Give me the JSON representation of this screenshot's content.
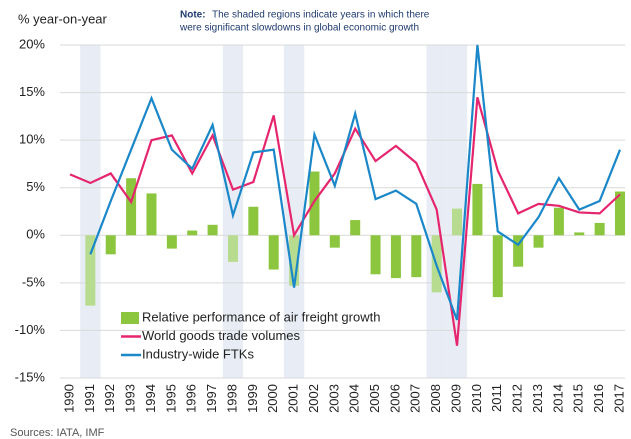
{
  "chart_data": {
    "type": "bar-line",
    "ylabel": "% year-on-year",
    "note_label": "Note:",
    "note_lines": [
      "The shaded regions indicate years in which there",
      "were significant slowdowns in global economic growth"
    ],
    "source": "Sources: IATA, IMF",
    "categories": [
      "1990",
      "1991",
      "1992",
      "1993",
      "1994",
      "1995",
      "1996",
      "1997",
      "1998",
      "1999",
      "2000",
      "2001",
      "2002",
      "2003",
      "2004",
      "2005",
      "2006",
      "2007",
      "2008",
      "2009",
      "2010",
      "2011",
      "2012",
      "2013",
      "2014",
      "2015",
      "2016",
      "2017"
    ],
    "shaded": [
      "1991",
      "1998",
      "2001",
      "2008",
      "2009"
    ],
    "shade_color": "#e8edf5",
    "series": [
      {
        "name": "Relative performance of air freight growth",
        "kind": "bar",
        "color": "#8cc63e",
        "highlight_color": "#b8dc8f",
        "values": [
          null,
          -7.4,
          -2.0,
          6.0,
          4.4,
          -1.4,
          0.5,
          1.1,
          -2.8,
          3.0,
          -3.6,
          -5.3,
          6.7,
          -1.3,
          1.6,
          -4.1,
          -4.5,
          -4.4,
          -6.0,
          2.8,
          5.4,
          -6.5,
          -3.3,
          -1.3,
          2.9,
          0.3,
          1.3,
          4.6
        ]
      },
      {
        "name": "World goods trade volumes",
        "kind": "line",
        "color": "#e5266e",
        "values": [
          6.4,
          5.5,
          6.5,
          3.5,
          10.0,
          10.5,
          6.5,
          10.5,
          4.8,
          5.6,
          12.6,
          0.0,
          3.6,
          6.5,
          11.2,
          7.8,
          9.4,
          7.6,
          2.7,
          -11.6,
          14.5,
          6.8,
          2.3,
          3.3,
          3.1,
          2.4,
          2.3,
          4.3
        ]
      },
      {
        "name": "Industry-wide FTKs",
        "kind": "line",
        "color": "#1a87c9",
        "values": [
          null,
          -2.0,
          3.6,
          9.0,
          14.4,
          9.0,
          7.0,
          11.6,
          2.1,
          8.7,
          9.0,
          -5.5,
          10.6,
          5.2,
          12.8,
          3.8,
          4.7,
          3.3,
          -3.2,
          -8.9,
          20.0,
          0.4,
          -1.0,
          1.9,
          6.0,
          2.7,
          3.6,
          9.0
        ]
      }
    ],
    "ylim": [
      -15,
      20
    ],
    "yticks": [
      {
        "value": -15,
        "label": "-15%"
      },
      {
        "value": -10,
        "label": "-10%"
      },
      {
        "value": -5,
        "label": "-5%"
      },
      {
        "value": 0,
        "label": "0%"
      },
      {
        "value": 5,
        "label": "5%"
      },
      {
        "value": 10,
        "label": "10%"
      },
      {
        "value": 15,
        "label": "15%"
      },
      {
        "value": 20,
        "label": "20%"
      }
    ],
    "grid": true
  }
}
